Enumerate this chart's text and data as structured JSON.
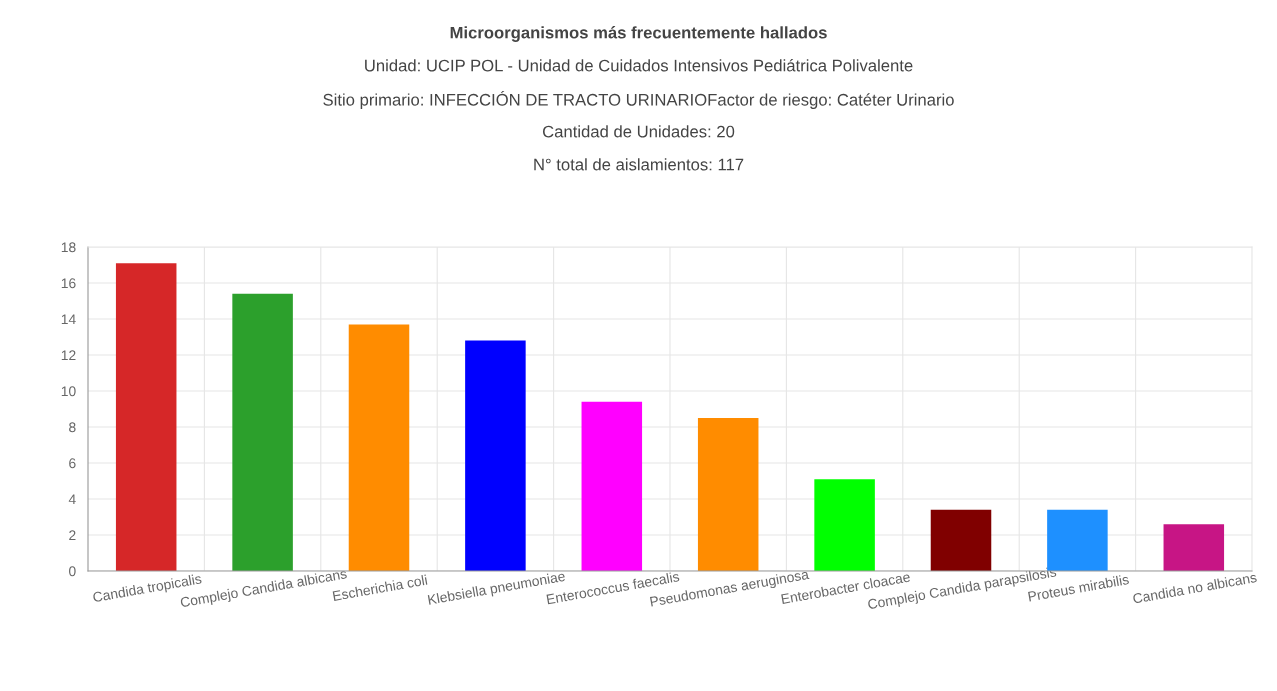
{
  "chart_data": {
    "type": "bar",
    "title": "Microorganismos más frecuentemente hallados",
    "subtitle": "Unidad: UCIP POL - Unidad de Cuidados Intensivos Pediátrica Polivalente\nSitio primario: INFECCIÓN DE TRACTO URINARIOFactor de riesgo: Catéter Urinario\nCantidad de Unidades: 20\nN° total de aislamientos: 117",
    "categories": [
      "Candida tropicalis",
      "Complejo Candida albicans",
      "Escherichia coli",
      "Klebsiella pneumoniae",
      "Enterococcus faecalis",
      "Pseudomonas aeruginosa",
      "Enterobacter cloacae",
      "Complejo Candida parapsilosis",
      "Proteus mirabilis",
      "Candida no albicans"
    ],
    "values": [
      17.1,
      15.4,
      13.7,
      12.8,
      9.4,
      8.5,
      5.1,
      3.4,
      3.4,
      2.6
    ],
    "colors": [
      "#d62728",
      "#2ca02c",
      "#ff8c00",
      "#0000ff",
      "#ff00ff",
      "#ff8c00",
      "#00ff00",
      "#800000",
      "#1e90ff",
      "#c71585"
    ],
    "ylim": [
      0,
      18
    ],
    "yticks": [
      0,
      2,
      4,
      6,
      8,
      10,
      12,
      14,
      16,
      18
    ],
    "grid": true
  }
}
